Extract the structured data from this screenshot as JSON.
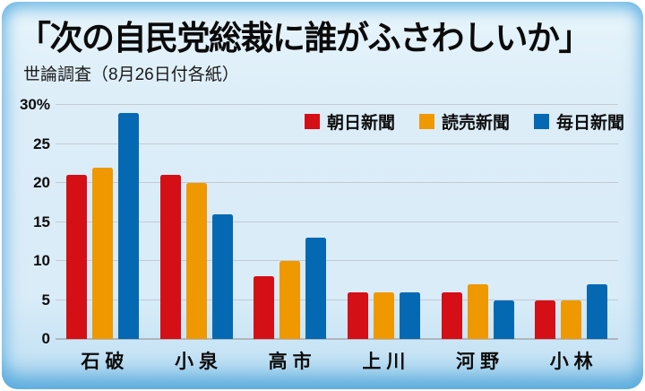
{
  "header": {
    "title": "「次の自民党総裁に誰がふさわしいか」",
    "subtitle": "世論調査（8月26日付各紙）"
  },
  "chart_data": {
    "type": "bar",
    "title": "「次の自民党総裁に誰がふさわしいか」",
    "subtitle": "世論調査（8月26日付各紙）",
    "categories": [
      "石破",
      "小泉",
      "高市",
      "上川",
      "河野",
      "小林"
    ],
    "series": [
      {
        "name": "朝日新聞",
        "color": "#d50f16",
        "values": [
          21,
          21,
          8,
          6,
          6,
          5
        ]
      },
      {
        "name": "読売新聞",
        "color": "#ef9800",
        "values": [
          22,
          20,
          10,
          6,
          7,
          5
        ]
      },
      {
        "name": "毎日新聞",
        "color": "#0469b2",
        "values": [
          29,
          16,
          13,
          6,
          5,
          7
        ]
      }
    ],
    "ylim": [
      0,
      30
    ],
    "yticks": [
      {
        "value": 0,
        "label": "0"
      },
      {
        "value": 5,
        "label": "5"
      },
      {
        "value": 10,
        "label": "10"
      },
      {
        "value": 15,
        "label": "15"
      },
      {
        "value": 20,
        "label": "20"
      },
      {
        "value": 25,
        "label": "25"
      },
      {
        "value": 30,
        "label": "30%"
      }
    ],
    "grid": true,
    "legend_position": "top-right",
    "unit": "%"
  },
  "colors": {
    "card_background": "#dcedf8",
    "gridline": "#c3cbd4",
    "baseline": "#aeb7c0",
    "text": "#0d0d0d",
    "asahi_red": "#d50f16",
    "yomiuri_orange": "#ef9800",
    "mainichi_blue": "#0469b2"
  }
}
